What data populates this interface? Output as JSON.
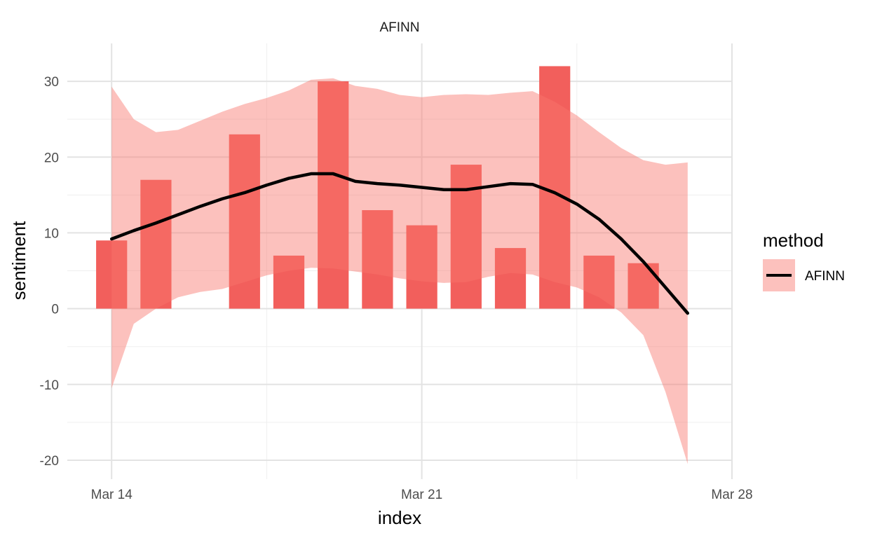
{
  "chart_data": {
    "type": "bar",
    "facet_title": "AFINN",
    "xlabel": "index",
    "ylabel": "sentiment",
    "x_is_date": true,
    "xlim": [
      "2021-03-13",
      "2021-03-28"
    ],
    "ylim": [
      -22.5,
      35
    ],
    "x_ticks": [
      {
        "date": "2021-03-14",
        "label": "Mar 14"
      },
      {
        "date": "2021-03-21",
        "label": "Mar 21"
      },
      {
        "date": "2021-03-28",
        "label": "Mar 28"
      }
    ],
    "y_ticks": [
      -20,
      -10,
      0,
      10,
      20,
      30
    ],
    "grid": true,
    "bar_color": "#F25F5C",
    "bars": [
      {
        "date": "2021-03-14",
        "value": 9
      },
      {
        "date": "2021-03-15",
        "value": 17
      },
      {
        "date": "2021-03-17",
        "value": 23
      },
      {
        "date": "2021-03-18",
        "value": 7
      },
      {
        "date": "2021-03-19",
        "value": 30
      },
      {
        "date": "2021-03-20",
        "value": 13
      },
      {
        "date": "2021-03-21",
        "value": 11
      },
      {
        "date": "2021-03-22",
        "value": 19
      },
      {
        "date": "2021-03-23",
        "value": 8
      },
      {
        "date": "2021-03-24",
        "value": 32
      },
      {
        "date": "2021-03-25",
        "value": 7
      },
      {
        "date": "2021-03-26",
        "value": 6
      }
    ],
    "smooth": {
      "name": "AFINN",
      "line_color": "#000000",
      "band_color": "#F8766D",
      "points": [
        {
          "date": "2021-03-14",
          "y": 9.2,
          "ymin": -10.5,
          "ymax": 29.3
        },
        {
          "date": "2021-03-14T12:00",
          "y": 10.3,
          "ymin": -2.0,
          "ymax": 25.0
        },
        {
          "date": "2021-03-15",
          "y": 11.3,
          "ymin": 0.0,
          "ymax": 23.3
        },
        {
          "date": "2021-03-15T12:00",
          "y": 12.4,
          "ymin": 1.5,
          "ymax": 23.6
        },
        {
          "date": "2021-03-16",
          "y": 13.5,
          "ymin": 2.2,
          "ymax": 24.8
        },
        {
          "date": "2021-03-16T12:00",
          "y": 14.5,
          "ymin": 2.6,
          "ymax": 26.0
        },
        {
          "date": "2021-03-17",
          "y": 15.3,
          "ymin": 3.5,
          "ymax": 27.0
        },
        {
          "date": "2021-03-17T12:00",
          "y": 16.3,
          "ymin": 4.4,
          "ymax": 27.8
        },
        {
          "date": "2021-03-18",
          "y": 17.2,
          "ymin": 5.0,
          "ymax": 28.8
        },
        {
          "date": "2021-03-18T12:00",
          "y": 17.8,
          "ymin": 5.4,
          "ymax": 30.2
        },
        {
          "date": "2021-03-19",
          "y": 17.8,
          "ymin": 5.3,
          "ymax": 30.4
        },
        {
          "date": "2021-03-19T12:00",
          "y": 16.8,
          "ymin": 4.9,
          "ymax": 29.4
        },
        {
          "date": "2021-03-20",
          "y": 16.5,
          "ymin": 4.5,
          "ymax": 29.0
        },
        {
          "date": "2021-03-20T12:00",
          "y": 16.3,
          "ymin": 4.0,
          "ymax": 28.2
        },
        {
          "date": "2021-03-21",
          "y": 16.0,
          "ymin": 3.6,
          "ymax": 27.9
        },
        {
          "date": "2021-03-21T12:00",
          "y": 15.7,
          "ymin": 3.4,
          "ymax": 28.2
        },
        {
          "date": "2021-03-22",
          "y": 15.7,
          "ymin": 3.5,
          "ymax": 28.3
        },
        {
          "date": "2021-03-22T12:00",
          "y": 16.1,
          "ymin": 4.2,
          "ymax": 28.2
        },
        {
          "date": "2021-03-23",
          "y": 16.5,
          "ymin": 4.7,
          "ymax": 28.5
        },
        {
          "date": "2021-03-23T12:00",
          "y": 16.4,
          "ymin": 4.5,
          "ymax": 28.7
        },
        {
          "date": "2021-03-24",
          "y": 15.3,
          "ymin": 3.5,
          "ymax": 27.3
        },
        {
          "date": "2021-03-24T12:00",
          "y": 13.8,
          "ymin": 2.8,
          "ymax": 25.5
        },
        {
          "date": "2021-03-25",
          "y": 11.8,
          "ymin": 1.5,
          "ymax": 23.3
        },
        {
          "date": "2021-03-25T12:00",
          "y": 9.2,
          "ymin": -0.5,
          "ymax": 21.2
        },
        {
          "date": "2021-03-26",
          "y": 6.2,
          "ymin": -3.5,
          "ymax": 19.6
        },
        {
          "date": "2021-03-26T12:00",
          "y": 2.8,
          "ymin": -11.0,
          "ymax": 19.0
        },
        {
          "date": "2021-03-27",
          "y": -0.6,
          "ymin": -20.5,
          "ymax": 19.3
        }
      ]
    },
    "legend": {
      "title": "method",
      "placement": "right",
      "items": [
        {
          "label": "AFINN"
        }
      ]
    }
  }
}
